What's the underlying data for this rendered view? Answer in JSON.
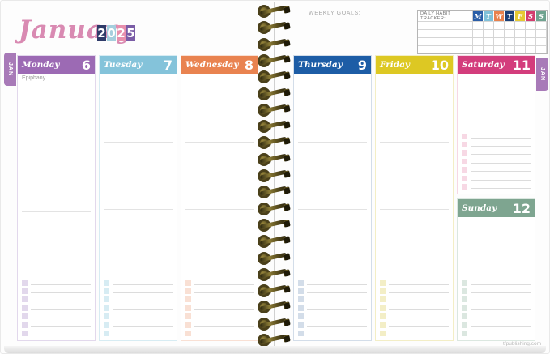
{
  "page": {
    "month_title": "January",
    "weekly_goals_label": "WEEKLY GOALS:",
    "website": "tfpublishing.com"
  },
  "year_digits": [
    {
      "d": "2",
      "bg": "#2f3b69"
    },
    {
      "d": "0",
      "bg": "#a5cedd"
    },
    {
      "d": "2",
      "bg": "#e78fad"
    },
    {
      "d": "5",
      "bg": "#7a5ca6"
    }
  ],
  "tabs": {
    "left_label": "JAN",
    "right_label": "JAN",
    "color": "#a87ab8"
  },
  "habit_tracker": {
    "label": "DAILY HABIT TRACKER:",
    "days": [
      {
        "label": "M",
        "color": "#2b5ea7"
      },
      {
        "label": "T",
        "color": "#7fc0d8"
      },
      {
        "label": "W",
        "color": "#e8814d"
      },
      {
        "label": "T",
        "color": "#1b3f77"
      },
      {
        "label": "F",
        "color": "#e5c932"
      },
      {
        "label": "S",
        "color": "#d33d6e"
      },
      {
        "label": "S",
        "color": "#6fa28f"
      }
    ],
    "empty_rows": 4
  },
  "days": [
    {
      "name": "Monday",
      "date": "6",
      "color": "#9c6ab4",
      "tint": "#e2d8ec",
      "note": "Epiphany"
    },
    {
      "name": "Tuesday",
      "date": "7",
      "color": "#84c3da",
      "tint": "#d7ecf3",
      "note": ""
    },
    {
      "name": "Wednesday",
      "date": "8",
      "color": "#e98350",
      "tint": "#f9e0d4",
      "note": ""
    },
    {
      "name": "Thursday",
      "date": "9",
      "color": "#1d5da6",
      "tint": "#d3dde9",
      "note": ""
    },
    {
      "name": "Friday",
      "date": "10",
      "color": "#ddc823",
      "tint": "#f3eec6",
      "note": ""
    },
    {
      "name": "Saturday",
      "date": "11",
      "color": "#d33d7c",
      "tint": "#f7d8e4",
      "note": ""
    },
    {
      "name": "Sunday",
      "date": "12",
      "color": "#7ea590",
      "tint": "#dbe7e0",
      "note": ""
    }
  ],
  "checklist_rows": 7
}
